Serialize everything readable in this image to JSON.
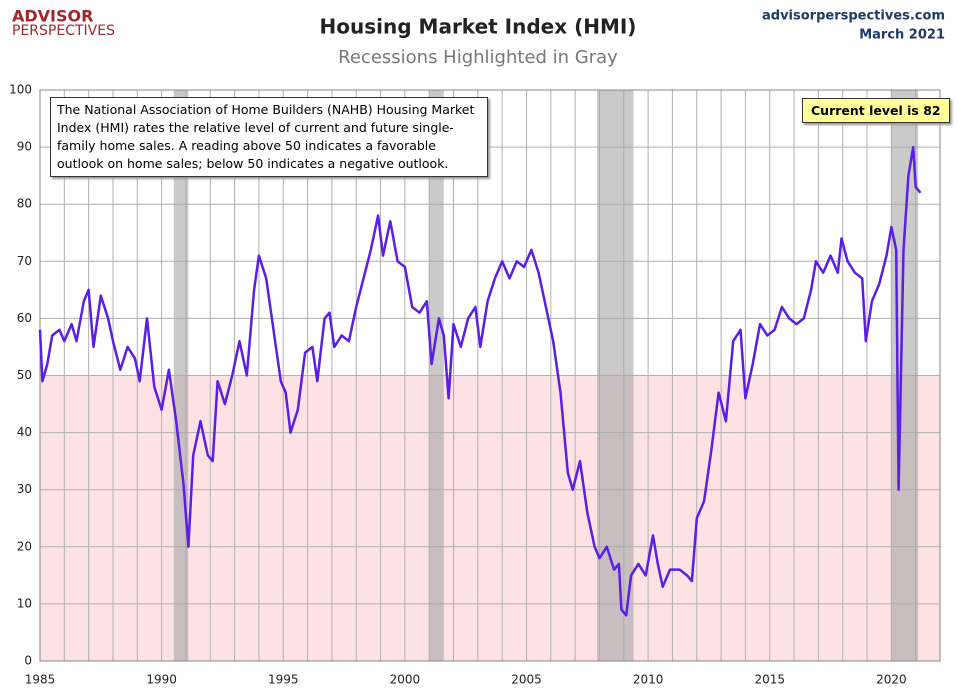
{
  "chart_data": {
    "type": "line",
    "title": "Housing Market Index (HMI)",
    "subtitle": "Recessions Highlighted in Gray",
    "logo": [
      "ADVISOR",
      "PERSPECTIVES"
    ],
    "site": "advisorperspectives.com",
    "date": "March 2021",
    "annotation": "The National Association of Home Builders (NAHB) Housing Market Index (HMI) rates the relative level of current and future single-family home sales. A reading above 50 indicates a favorable outlook on home sales; below 50 indicates a negative outlook.",
    "callout": "Current level is 82",
    "x": [
      1985.0,
      1985.1,
      1985.3,
      1985.5,
      1985.8,
      1986.0,
      1986.3,
      1986.5,
      1986.8,
      1987.0,
      1987.2,
      1987.5,
      1987.8,
      1988.0,
      1988.3,
      1988.6,
      1988.9,
      1989.1,
      1989.4,
      1989.7,
      1990.0,
      1990.3,
      1990.6,
      1990.9,
      1991.1,
      1991.3,
      1991.6,
      1991.9,
      1992.1,
      1992.3,
      1992.6,
      1992.9,
      1993.2,
      1993.5,
      1993.8,
      1994.0,
      1994.3,
      1994.6,
      1994.9,
      1995.1,
      1995.3,
      1995.6,
      1995.9,
      1996.2,
      1996.4,
      1996.7,
      1996.9,
      1997.1,
      1997.4,
      1997.7,
      1998.0,
      1998.3,
      1998.6,
      1998.9,
      1999.1,
      1999.4,
      1999.7,
      2000.0,
      2000.3,
      2000.6,
      2000.9,
      2001.1,
      2001.4,
      2001.6,
      2001.8,
      2002.0,
      2002.3,
      2002.6,
      2002.9,
      2003.1,
      2003.4,
      2003.7,
      2004.0,
      2004.3,
      2004.6,
      2004.9,
      2005.2,
      2005.5,
      2005.8,
      2006.1,
      2006.4,
      2006.7,
      2006.9,
      2007.2,
      2007.5,
      2007.8,
      2008.0,
      2008.3,
      2008.6,
      2008.8,
      2008.9,
      2009.1,
      2009.3,
      2009.6,
      2009.9,
      2010.2,
      2010.4,
      2010.6,
      2010.9,
      2011.3,
      2011.6,
      2011.8,
      2012.0,
      2012.3,
      2012.6,
      2012.9,
      2013.2,
      2013.5,
      2013.8,
      2014.0,
      2014.3,
      2014.6,
      2014.9,
      2015.2,
      2015.5,
      2015.8,
      2016.1,
      2016.4,
      2016.7,
      2016.9,
      2017.2,
      2017.5,
      2017.8,
      2017.95,
      2018.2,
      2018.5,
      2018.8,
      2018.95,
      2019.2,
      2019.5,
      2019.8,
      2020.0,
      2020.2,
      2020.3,
      2020.5,
      2020.7,
      2020.9,
      2021.0,
      2021.2
    ],
    "series": [
      {
        "color": "#5a1ee6",
        "values": [
          58,
          49,
          52,
          57,
          58,
          56,
          59,
          56,
          63,
          65,
          55,
          64,
          60,
          56,
          51,
          55,
          53,
          49,
          60,
          48,
          44,
          51,
          42,
          31,
          20,
          36,
          42,
          36,
          35,
          49,
          45,
          50,
          56,
          50,
          65,
          71,
          67,
          58,
          49,
          47,
          40,
          44,
          54,
          55,
          49,
          60,
          61,
          55,
          57,
          56,
          62,
          67,
          72,
          78,
          71,
          77,
          70,
          69,
          62,
          61,
          63,
          52,
          60,
          57,
          46,
          59,
          55,
          60,
          62,
          55,
          63,
          67,
          70,
          67,
          70,
          69,
          72,
          68,
          62,
          56,
          47,
          33,
          30,
          35,
          26,
          20,
          18,
          20,
          16,
          17,
          9,
          8,
          15,
          17,
          15,
          22,
          17,
          13,
          16,
          16,
          15,
          14,
          25,
          28,
          37,
          47,
          42,
          56,
          58,
          46,
          52,
          59,
          57,
          58,
          62,
          60,
          59,
          60,
          65,
          70,
          68,
          71,
          68,
          74,
          70,
          68,
          67,
          56,
          63,
          66,
          71,
          76,
          72,
          30,
          72,
          85,
          90,
          83,
          82
        ]
      }
    ],
    "xlim": [
      1985,
      2022
    ],
    "ylim": [
      0,
      100
    ],
    "xticks": [
      1985,
      1990,
      1995,
      2000,
      2005,
      2010,
      2015,
      2020
    ],
    "xminorticks": [
      1986,
      1987,
      1988,
      1989,
      1991,
      1992,
      1993,
      1994,
      1996,
      1997,
      1998,
      1999,
      2001,
      2002,
      2003,
      2004,
      2006,
      2007,
      2008,
      2009,
      2011,
      2012,
      2013,
      2014,
      2016,
      2017,
      2018,
      2019,
      2021
    ],
    "yticks": [
      0,
      10,
      20,
      30,
      40,
      50,
      60,
      70,
      80,
      90,
      100
    ],
    "recessions": [
      [
        1990.5,
        1991.1
      ],
      [
        2001.0,
        2001.6
      ],
      [
        2007.9,
        2009.4
      ],
      [
        2020.0,
        2021.1
      ]
    ],
    "shade_below": 50,
    "grid": true
  }
}
